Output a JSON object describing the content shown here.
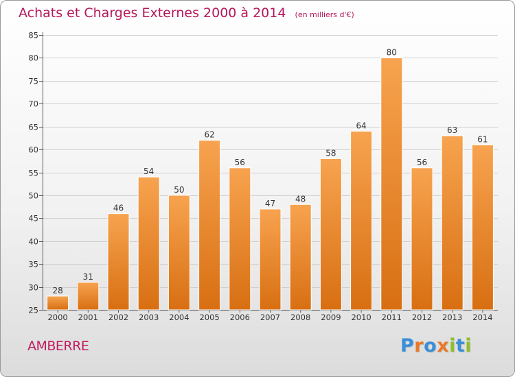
{
  "title": "Achats et Charges Externes 2000 à 2014",
  "unit": "(en milliers d'€)",
  "commune": "AMBERRE",
  "logo": {
    "text": "Proxiti",
    "letters": [
      {
        "char": "P",
        "color": "#3a8fd8"
      },
      {
        "char": "r",
        "color": "#e9782a"
      },
      {
        "char": "o",
        "color": "#3a8fd8"
      },
      {
        "char": "x",
        "color": "#e9782a"
      },
      {
        "char": "i",
        "color": "#8fbf2a"
      },
      {
        "char": "t",
        "color": "#3a8fd8"
      },
      {
        "char": "i",
        "color": "#8fbf2a"
      }
    ]
  },
  "colors": {
    "title": "#b5175a",
    "bar_light": "#f7a34f",
    "bar_dark": "#d86f12",
    "bar_edge": "#ffffff",
    "grid": "#cfcfcf",
    "axis": "#555555",
    "tick_text": "#333333"
  },
  "chart_data": {
    "type": "bar",
    "categories": [
      "2000",
      "2001",
      "2002",
      "2003",
      "2004",
      "2005",
      "2006",
      "2007",
      "2008",
      "2009",
      "2010",
      "2011",
      "2012",
      "2013",
      "2014"
    ],
    "values": [
      28,
      31,
      46,
      54,
      50,
      62,
      56,
      47,
      48,
      58,
      64,
      80,
      56,
      63,
      61
    ],
    "ylim": [
      25,
      85
    ],
    "yticks": [
      25,
      30,
      35,
      40,
      45,
      50,
      55,
      60,
      65,
      70,
      75,
      80,
      85
    ],
    "grid": true,
    "data_labels": true
  }
}
